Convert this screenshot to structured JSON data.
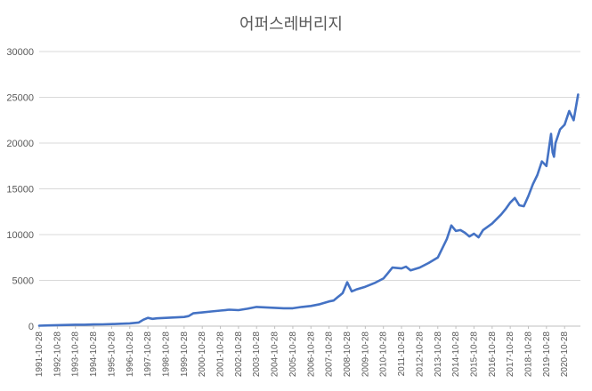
{
  "chart_data": {
    "type": "line",
    "title": "어퍼스레버리지",
    "xlabel": "",
    "ylabel": "",
    "ylim": [
      0,
      30000
    ],
    "yticks": [
      0,
      5000,
      10000,
      15000,
      20000,
      25000,
      30000
    ],
    "ytick_labels": [
      "0",
      "5000",
      "10000",
      "15000",
      "20000",
      "25000",
      "30000"
    ],
    "xtick_labels": [
      "1991-10-28",
      "1992-10-28",
      "1993-10-28",
      "1994-10-28",
      "1995-10-28",
      "1996-10-28",
      "1997-10-28",
      "1998-10-28",
      "1999-10-28",
      "2000-10-28",
      "2001-10-28",
      "2002-10-28",
      "2003-10-28",
      "2004-10-28",
      "2005-10-28",
      "2006-10-28",
      "2007-10-28",
      "2008-10-28",
      "2009-10-28",
      "2010-10-28",
      "2011-10-28",
      "2012-10-28",
      "2013-10-28",
      "2014-10-28",
      "2015-10-28",
      "2016-10-28",
      "2017-10-28",
      "2018-10-28",
      "2019-10-28",
      "2020-10-28"
    ],
    "grid": true,
    "legend": "none",
    "series_color": "#4472c4",
    "x": [
      "1991-10-28",
      "1992-04-28",
      "1992-10-28",
      "1993-04-28",
      "1993-10-28",
      "1994-04-28",
      "1994-10-28",
      "1995-04-28",
      "1995-10-28",
      "1996-04-28",
      "1996-10-28",
      "1997-04-28",
      "1997-07-28",
      "1997-10-28",
      "1998-01-28",
      "1998-04-28",
      "1998-10-28",
      "1999-04-28",
      "1999-10-28",
      "2000-01-28",
      "2000-04-28",
      "2000-10-28",
      "2001-04-28",
      "2001-10-28",
      "2002-04-28",
      "2002-10-28",
      "2003-04-28",
      "2003-10-28",
      "2004-04-28",
      "2004-10-28",
      "2005-04-28",
      "2005-10-28",
      "2006-04-28",
      "2006-10-28",
      "2007-04-28",
      "2007-10-28",
      "2008-01-28",
      "2008-04-28",
      "2008-07-28",
      "2008-10-28",
      "2009-01-28",
      "2009-04-28",
      "2009-10-28",
      "2010-04-28",
      "2010-10-28",
      "2011-01-28",
      "2011-04-28",
      "2011-10-28",
      "2012-01-28",
      "2012-04-28",
      "2012-10-28",
      "2013-04-28",
      "2013-10-28",
      "2014-04-28",
      "2014-07-28",
      "2014-10-28",
      "2015-01-28",
      "2015-04-28",
      "2015-07-28",
      "2015-10-28",
      "2016-01-28",
      "2016-04-28",
      "2016-10-28",
      "2017-04-28",
      "2017-07-28",
      "2017-10-28",
      "2018-01-28",
      "2018-04-28",
      "2018-07-28",
      "2018-10-28",
      "2019-01-28",
      "2019-04-28",
      "2019-07-28",
      "2019-10-28",
      "2020-01-28",
      "2020-02-28",
      "2020-03-28",
      "2020-04-28",
      "2020-07-28",
      "2020-10-28",
      "2021-01-28",
      "2021-04-28",
      "2021-07-28"
    ],
    "values": [
      50,
      80,
      110,
      130,
      160,
      160,
      180,
      190,
      220,
      260,
      300,
      400,
      700,
      900,
      800,
      850,
      900,
      950,
      1000,
      1100,
      1400,
      1500,
      1600,
      1700,
      1800,
      1750,
      1900,
      2100,
      2050,
      2000,
      1950,
      1950,
      2100,
      2200,
      2400,
      2700,
      2800,
      3200,
      3600,
      4800,
      3800,
      4000,
      4300,
      4700,
      5200,
      5800,
      6400,
      6300,
      6500,
      6100,
      6400,
      6900,
      7500,
      9500,
      11000,
      10400,
      10500,
      10200,
      9800,
      10100,
      9700,
      10500,
      11200,
      12200,
      12800,
      13500,
      14000,
      13200,
      13100,
      14200,
      15500,
      16500,
      18000,
      17500,
      21000,
      19000,
      18500,
      20000,
      21500,
      22000,
      23500,
      22500,
      25300
    ]
  }
}
